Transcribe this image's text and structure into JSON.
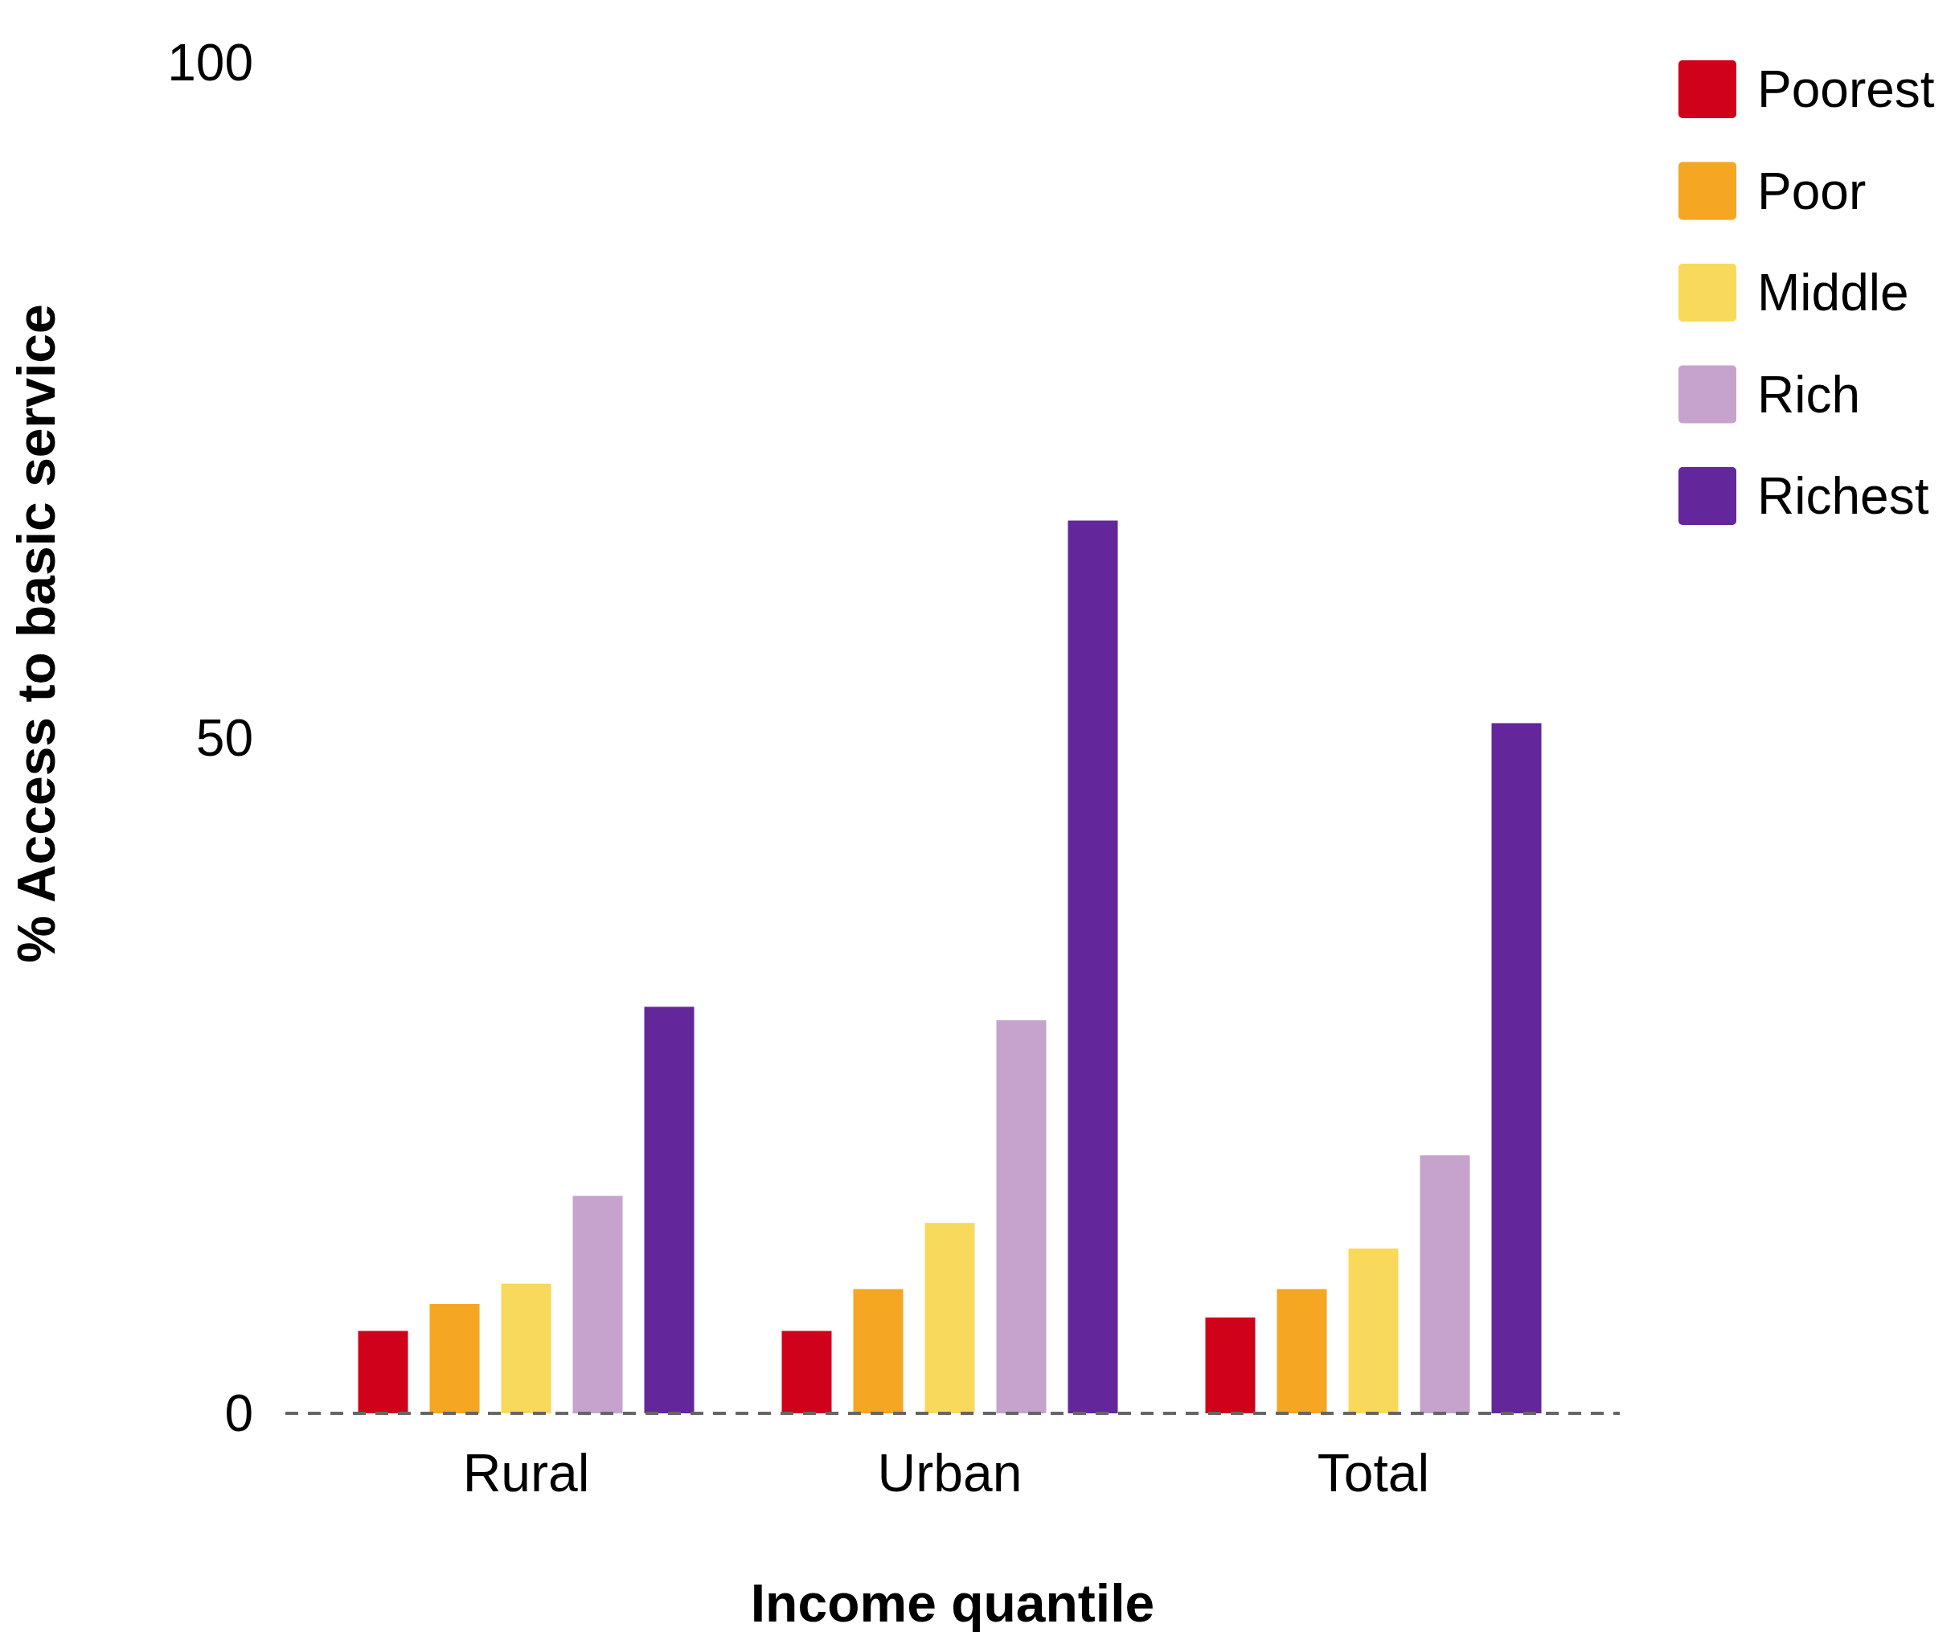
{
  "chart_data": {
    "type": "bar",
    "xlabel": "Income quantile",
    "ylabel": "% Access to basic service",
    "categories": [
      "Rural",
      "Urban",
      "Total"
    ],
    "series": [
      {
        "name": "Poorest",
        "color": "#d0021b",
        "values": [
          6.1,
          6.1,
          7.1
        ]
      },
      {
        "name": "Poor",
        "color": "#f5a623",
        "values": [
          8.1,
          9.2,
          9.2
        ]
      },
      {
        "name": "Middle",
        "color": "#f8d95b",
        "values": [
          9.6,
          14.1,
          12.2
        ]
      },
      {
        "name": "Rich",
        "color": "#c5a3cc",
        "values": [
          16.1,
          29.1,
          19.1
        ]
      },
      {
        "name": "Richest",
        "color": "#63269b",
        "values": [
          30.1,
          66.1,
          51.1
        ]
      }
    ],
    "ylim": [
      0,
      100
    ],
    "yticks": [
      0,
      50,
      100
    ],
    "grid": false,
    "legend": "top right"
  }
}
